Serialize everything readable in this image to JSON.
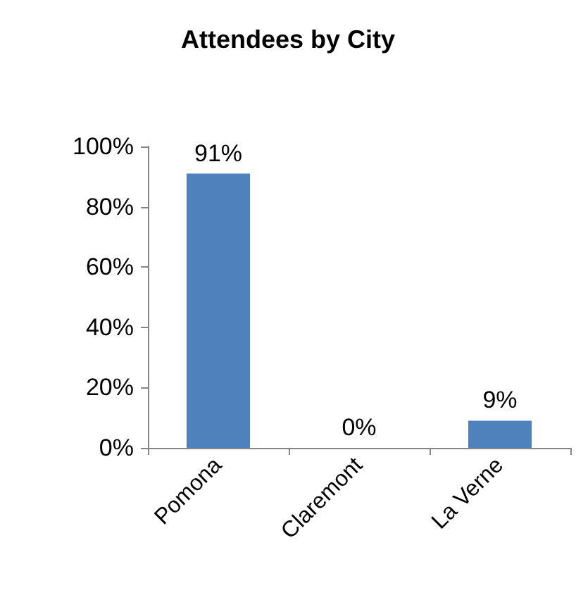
{
  "chart_data": {
    "type": "bar",
    "title": "Attendees by City",
    "categories": [
      "Pomona",
      "Claremont",
      "La Verne"
    ],
    "values": [
      91,
      0,
      9
    ],
    "color": "#4f81bd",
    "value_labels": [
      "91%",
      "0%",
      "9%"
    ],
    "ylim": [
      0,
      100
    ],
    "yticks": [
      {
        "value": 0,
        "label": "0%"
      },
      {
        "value": 20,
        "label": "20%"
      },
      {
        "value": 40,
        "label": "40%"
      },
      {
        "value": 60,
        "label": "60%"
      },
      {
        "value": 80,
        "label": "80%"
      },
      {
        "value": 100,
        "label": "100%"
      }
    ],
    "grid": false
  }
}
